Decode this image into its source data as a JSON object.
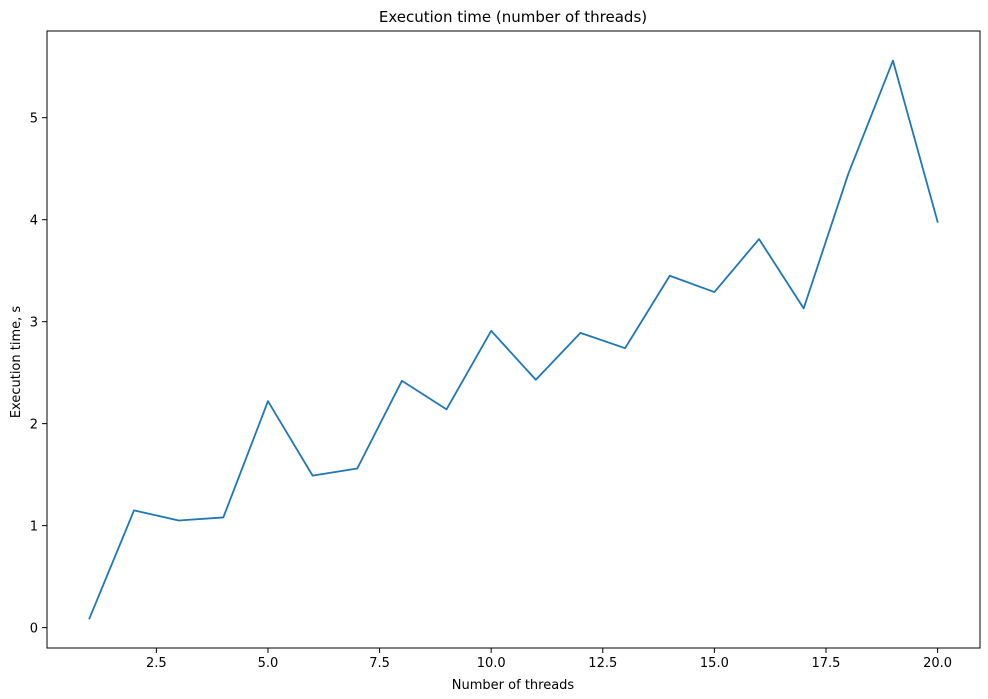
{
  "chart_data": {
    "type": "line",
    "title": "Execution time (number of threads)",
    "xlabel": "Number of threads",
    "ylabel": "Execution time, s",
    "xlim": [
      0.05,
      20.95
    ],
    "ylim": [
      -0.2,
      5.85
    ],
    "x_ticks": [
      2.5,
      5.0,
      7.5,
      10.0,
      12.5,
      15.0,
      17.5,
      20.0
    ],
    "x_tick_labels": [
      "2.5",
      "5.0",
      "7.5",
      "10.0",
      "12.5",
      "15.0",
      "17.5",
      "20.0"
    ],
    "y_ticks": [
      0,
      1,
      2,
      3,
      4,
      5
    ],
    "y_tick_labels": [
      "0",
      "1",
      "2",
      "3",
      "4",
      "5"
    ],
    "grid": false,
    "series": [
      {
        "color": "#1f77b4",
        "x": [
          1,
          2,
          3,
          4,
          5,
          6,
          7,
          8,
          9,
          10,
          11,
          12,
          13,
          14,
          15,
          16,
          17,
          18,
          19,
          20
        ],
        "y": [
          0.09,
          1.15,
          1.05,
          1.08,
          2.22,
          1.49,
          1.56,
          2.42,
          2.14,
          2.91,
          2.43,
          2.89,
          2.74,
          3.45,
          3.29,
          3.81,
          3.13,
          4.45,
          5.56,
          3.98
        ]
      }
    ]
  }
}
